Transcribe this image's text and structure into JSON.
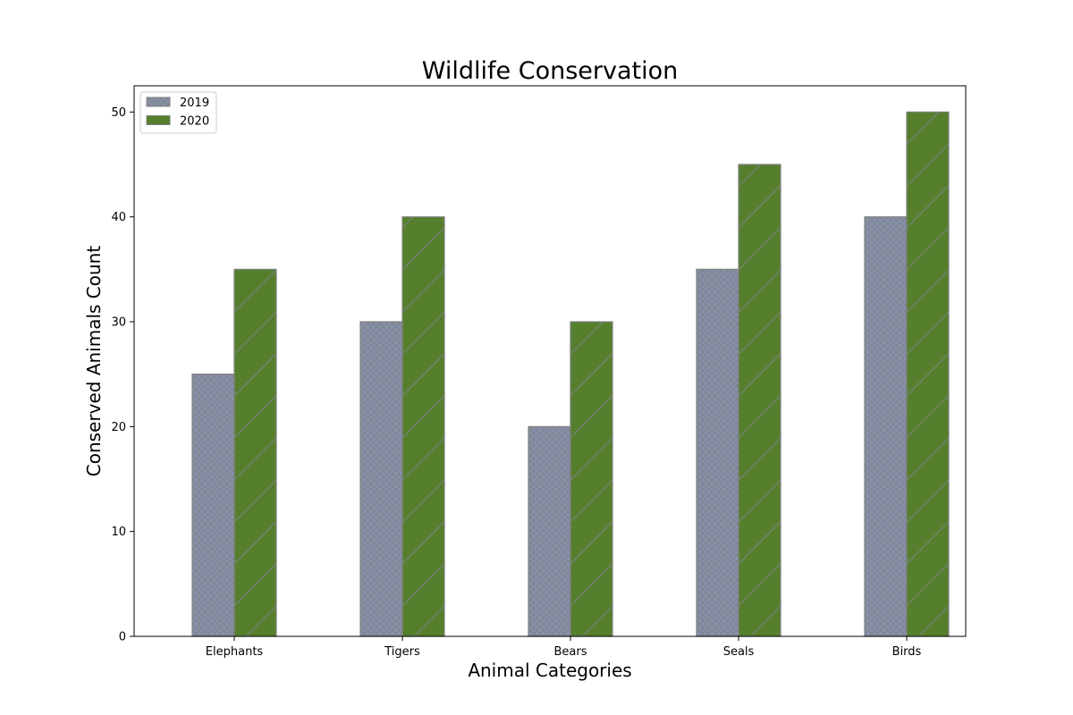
{
  "chart_data": {
    "type": "bar",
    "title": "Wildlife Conservation",
    "xlabel": "Animal Categories",
    "ylabel": "Conserved Animals Count",
    "categories": [
      "Elephants",
      "Tigers",
      "Bears",
      "Seals",
      "Birds"
    ],
    "series": [
      {
        "name": "2019",
        "values": [
          25,
          30,
          20,
          35,
          40
        ],
        "color": "#8590ab",
        "pattern": "dots"
      },
      {
        "name": "2020",
        "values": [
          35,
          40,
          30,
          45,
          50
        ],
        "color": "#557f2d",
        "pattern": "diagonal-hatch"
      }
    ],
    "ylim": [
      0,
      52.5
    ],
    "yticks": [
      0,
      10,
      20,
      30,
      40,
      50
    ],
    "grid": false,
    "legend": "top-left",
    "edge_color": "#808080"
  }
}
